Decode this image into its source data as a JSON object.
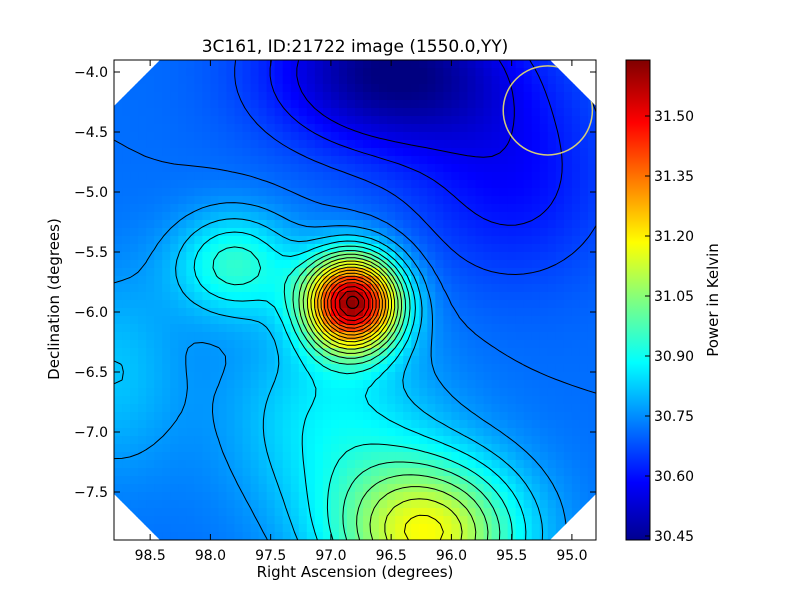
{
  "chart_data": {
    "type": "heatmap",
    "title": "3C161, ID:21722 image (1550.0,YY)",
    "xlabel": "Right Ascension (degrees)",
    "ylabel": "Declination (degrees)",
    "xlim": [
      98.8,
      94.8
    ],
    "ylim": [
      -7.9,
      -3.9
    ],
    "x_reversed": true,
    "x_ticks": [
      98.5,
      98.0,
      97.5,
      97.0,
      96.5,
      96.0,
      95.5,
      95.0
    ],
    "x_tick_labels": [
      "98.5",
      "98.0",
      "97.5",
      "97.0",
      "96.5",
      "96.0",
      "95.5",
      "95.0"
    ],
    "y_ticks": [
      -4.0,
      -4.5,
      -5.0,
      -5.5,
      -6.0,
      -6.5,
      -7.0,
      -7.5
    ],
    "y_tick_labels": [
      "−4.0",
      "−4.5",
      "−5.0",
      "−5.5",
      "−6.0",
      "−6.5",
      "−7.0",
      "−7.5"
    ],
    "colormap": "jet",
    "colorbar": {
      "label": "Power in Kelvin",
      "range": [
        30.44,
        31.64
      ],
      "ticks": [
        30.45,
        30.6,
        30.75,
        30.9,
        31.05,
        31.2,
        31.35,
        31.5
      ],
      "tick_labels": [
        "30.45",
        "30.60",
        "30.75",
        "30.90",
        "31.05",
        "31.20",
        "31.35",
        "31.50"
      ]
    },
    "contour_color": "#000000",
    "field": {
      "baseline": 30.72,
      "sources": [
        {
          "ra": 96.82,
          "dec": -5.92,
          "amplitude": 0.88,
          "sigma_ra": 0.27,
          "sigma_dec": 0.27
        },
        {
          "ra": 97.8,
          "dec": -5.6,
          "amplitude": 0.22,
          "sigma_ra": 0.35,
          "sigma_dec": 0.3
        },
        {
          "ra": 96.2,
          "dec": -7.85,
          "amplitude": 0.45,
          "sigma_ra": 0.55,
          "sigma_dec": 0.45
        },
        {
          "ra": 97.0,
          "dec": -6.9,
          "amplitude": 0.15,
          "sigma_ra": 0.6,
          "sigma_dec": 0.6
        },
        {
          "ra": 96.5,
          "dec": -4.0,
          "amplitude": -0.28,
          "sigma_ra": 0.7,
          "sigma_dec": 0.45
        },
        {
          "ra": 95.5,
          "dec": -4.9,
          "amplitude": -0.12,
          "sigma_ra": 0.6,
          "sigma_dec": 0.6
        },
        {
          "ra": 98.8,
          "dec": -6.5,
          "amplitude": 0.1,
          "sigma_ra": 0.4,
          "sigma_dec": 0.6
        }
      ],
      "contour_levels": [
        30.57,
        30.62,
        30.67,
        30.72,
        30.77,
        30.82,
        30.87,
        30.92,
        30.97,
        31.02,
        31.07,
        31.12,
        31.17,
        31.22,
        31.27,
        31.32,
        31.37,
        31.42,
        31.47,
        31.52,
        31.57
      ]
    },
    "beam_circle": {
      "ra": 95.2,
      "dec": -4.32,
      "radius_deg": 0.37,
      "color": "#d4cc7a"
    },
    "marker": {
      "ra": 96.82,
      "dec": -5.92,
      "label": ""
    },
    "corner_cut": "octagon"
  }
}
